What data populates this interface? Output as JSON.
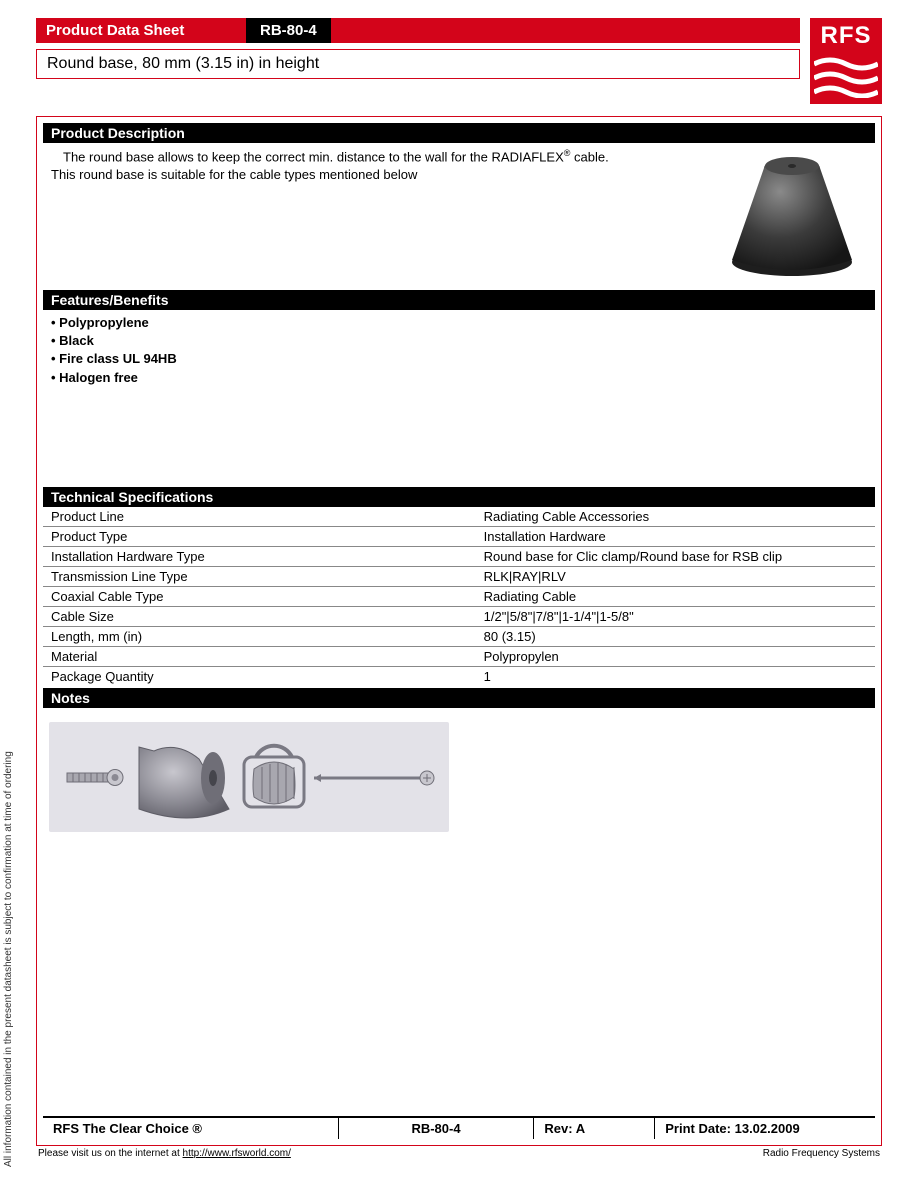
{
  "sidebar_note": "All information contained in the present datasheet is subject to confirmation at time of ordering",
  "header": {
    "sheet_title": "Product Data Sheet",
    "product_code": "RB-80-4",
    "subtitle": "Round base, 80 mm (3.15 in) in height",
    "logo_text": "RFS"
  },
  "sections": {
    "description": {
      "heading": "Product Description",
      "line1_pre": "The round base allows to keep the correct min. distance to the wall for the RADIAFLEX",
      "sup": "®",
      "line1_post": " cable.",
      "line2": "This round base is suitable for the cable types mentioned below"
    },
    "features": {
      "heading": "Features/Benefits",
      "items": [
        "Polypropylene",
        "Black",
        "Fire class UL 94HB",
        "Halogen free"
      ]
    },
    "specs": {
      "heading": "Technical Specifications",
      "rows": [
        {
          "label": "Product Line",
          "value": "Radiating Cable Accessories"
        },
        {
          "label": "Product Type",
          "value": "Installation Hardware"
        },
        {
          "label": "Installation Hardware Type",
          "value": "Round base for Clic clamp/Round base for RSB clip"
        },
        {
          "label": "Transmission Line Type",
          "value": "RLK|RAY|RLV"
        },
        {
          "label": "Coaxial Cable Type",
          "value": "Radiating Cable"
        },
        {
          "label": "Cable Size",
          "value": "1/2\"|5/8\"|7/8\"|1-1/4\"|1-5/8\""
        },
        {
          "label": "Length, mm (in)",
          "value": "80 (3.15)"
        },
        {
          "label": "Material",
          "value": "Polypropylen"
        },
        {
          "label": "Package Quantity",
          "value": "1"
        }
      ]
    },
    "notes": {
      "heading": "Notes"
    }
  },
  "footer": {
    "tagline": "RFS The Clear Choice ®",
    "code": "RB-80-4",
    "rev": "Rev: A",
    "print_date": "Print Date: 13.02.2009",
    "visit_pre": "Please visit us on the internet at ",
    "visit_url": "http://www.rfsworld.com/",
    "company": "Radio Frequency Systems"
  },
  "colors": {
    "brand_red": "#d3041a",
    "black": "#000000",
    "cone_dark": "#2a2a2a",
    "cone_light": "#6a6a6a",
    "fig_bg": "#e3e2e8",
    "fig_gray": "#8b8a92"
  }
}
